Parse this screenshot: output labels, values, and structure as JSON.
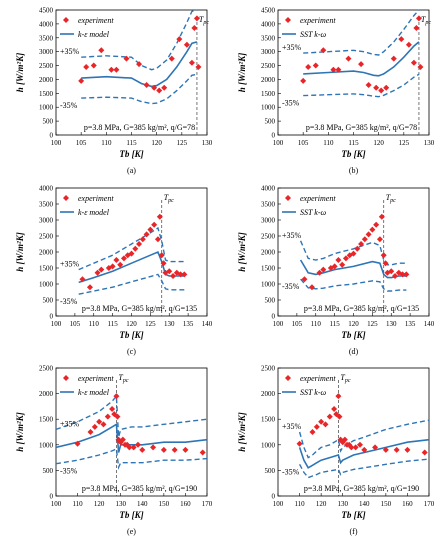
{
  "chart_data": [
    {
      "type": "scatter",
      "panel": "(a)",
      "ylabel": "h [W/m²K]",
      "xlabel": "Tb [K]",
      "xlim": [
        100,
        130
      ],
      "ylim": [
        0,
        4500
      ],
      "xticks": [
        100,
        105,
        110,
        115,
        120,
        125,
        130
      ],
      "yticks": [
        0,
        500,
        1000,
        1500,
        2000,
        2500,
        3000,
        3500,
        4000,
        4500
      ],
      "tpc": 128,
      "legend": {
        "experiment": "experiment",
        "model": "k-ε model"
      },
      "plus_label": "+35%",
      "minus_label": "-35%",
      "condition": "p=3.8 MPa, G=385 kg/m², q/G=78",
      "experiment": {
        "x": [
          105,
          106,
          107.5,
          109,
          111,
          112,
          114,
          116.5,
          118,
          119.5,
          120.5,
          121.5,
          123,
          124.5,
          126,
          127,
          127.5,
          128,
          128.3
        ],
        "y": [
          1950,
          2450,
          2500,
          3050,
          2350,
          2350,
          2750,
          2550,
          1800,
          1700,
          1600,
          1700,
          2750,
          3450,
          3250,
          2600,
          3850,
          4200,
          2450
        ]
      },
      "model": {
        "x": [
          105,
          110,
          115,
          117,
          119,
          120,
          122,
          124,
          126,
          127,
          128
        ],
        "y": [
          2050,
          2100,
          2050,
          1850,
          1750,
          1780,
          2000,
          2450,
          3000,
          3300,
          3350
        ]
      },
      "plus": {
        "x": [
          105,
          110,
          115,
          117,
          119,
          120,
          122,
          124,
          126,
          127,
          128
        ],
        "y": [
          2800,
          2850,
          2800,
          2500,
          2350,
          2400,
          2700,
          3300,
          4050,
          4450,
          4500
        ]
      },
      "minus": {
        "x": [
          105,
          110,
          115,
          117,
          119,
          120,
          122,
          124,
          126,
          127,
          128
        ],
        "y": [
          1330,
          1360,
          1330,
          1200,
          1130,
          1150,
          1300,
          1600,
          1950,
          2150,
          2180
        ]
      }
    },
    {
      "type": "scatter",
      "panel": "(b)",
      "ylabel": "h [W/m²K]",
      "xlabel": "Tb [K]",
      "xlim": [
        100,
        130
      ],
      "ylim": [
        0,
        4500
      ],
      "xticks": [
        100,
        105,
        110,
        115,
        120,
        125,
        130
      ],
      "yticks": [
        0,
        500,
        1000,
        1500,
        2000,
        2500,
        3000,
        3500,
        4000,
        4500
      ],
      "tpc": 128,
      "legend": {
        "experiment": "experiment",
        "model": "SST k-ω"
      },
      "plus_label": "+35%",
      "minus_label": "-35%",
      "condition": "p=3.8 MPa, G=385 kg/m², q/G=78",
      "experiment": {
        "x": [
          105,
          106,
          107.5,
          109,
          111,
          112,
          114,
          116.5,
          118,
          119.5,
          120.5,
          121.5,
          123,
          124.5,
          126,
          127,
          127.5,
          128,
          128.3
        ],
        "y": [
          1950,
          2450,
          2500,
          3050,
          2350,
          2350,
          2750,
          2550,
          1800,
          1700,
          1600,
          1700,
          2750,
          3450,
          3250,
          2600,
          3850,
          4200,
          2450
        ]
      },
      "model": {
        "x": [
          105,
          110,
          115,
          117,
          119,
          120,
          121,
          123,
          125,
          127,
          128
        ],
        "y": [
          2200,
          2250,
          2300,
          2250,
          2150,
          2130,
          2200,
          2450,
          2800,
          3200,
          3350
        ]
      },
      "plus": {
        "x": [
          105,
          110,
          115,
          117,
          119,
          120,
          121,
          123,
          125,
          127,
          128
        ],
        "y": [
          2950,
          3000,
          3050,
          3000,
          2900,
          2880,
          3000,
          3350,
          3800,
          4300,
          4500
        ]
      },
      "minus": {
        "x": [
          105,
          110,
          115,
          117,
          119,
          120,
          121,
          123,
          125,
          127,
          128
        ],
        "y": [
          1420,
          1450,
          1480,
          1450,
          1400,
          1380,
          1430,
          1600,
          1800,
          2080,
          2180
        ]
      }
    },
    {
      "type": "scatter",
      "panel": "(c)",
      "ylabel": "h [W/m²K]",
      "xlabel": "Tb [K]",
      "xlim": [
        100,
        140
      ],
      "ylim": [
        0,
        4000
      ],
      "xticks": [
        100,
        105,
        110,
        115,
        120,
        125,
        130,
        135,
        140
      ],
      "yticks": [
        0,
        500,
        1000,
        1500,
        2000,
        2500,
        3000,
        3500,
        4000
      ],
      "tpc": 128,
      "legend": {
        "experiment": "experiment",
        "model": "k-ε model"
      },
      "plus_label": "+35%",
      "minus_label": "-35%",
      "condition": "p=3.8 MPa, G=385 kg/m², q/G=135",
      "experiment": {
        "x": [
          107,
          109,
          111,
          112,
          114,
          115,
          116,
          117,
          118,
          119,
          120,
          121,
          122,
          123,
          124,
          125,
          126,
          127,
          127.5,
          128,
          128.5,
          129,
          130,
          131,
          132,
          133,
          134
        ],
        "y": [
          1150,
          900,
          1350,
          1450,
          1500,
          1550,
          1750,
          1600,
          1800,
          1900,
          1950,
          2100,
          2250,
          2400,
          2550,
          2700,
          2850,
          2400,
          3100,
          1900,
          1650,
          1350,
          1400,
          1250,
          1350,
          1300,
          1300
        ]
      },
      "model": {
        "x": [
          106,
          110,
          115,
          120,
          125,
          127,
          128,
          129,
          130,
          132,
          134
        ],
        "y": [
          1050,
          1200,
          1400,
          1650,
          1900,
          2000,
          1700,
          1300,
          1250,
          1250,
          1250
        ]
      },
      "plus": {
        "x": [
          106,
          110,
          115,
          120,
          125,
          127,
          128,
          129,
          130,
          132,
          134
        ],
        "y": [
          1450,
          1650,
          1900,
          2250,
          2600,
          2750,
          2350,
          1750,
          1700,
          1700,
          1700
        ]
      },
      "minus": {
        "x": [
          106,
          110,
          115,
          120,
          125,
          127,
          128,
          129,
          130,
          132,
          134
        ],
        "y": [
          680,
          780,
          900,
          1070,
          1230,
          1300,
          1100,
          850,
          820,
          820,
          820
        ]
      }
    },
    {
      "type": "scatter",
      "panel": "(d)",
      "ylabel": "h [W/m²K]",
      "xlabel": "Tb [K]",
      "xlim": [
        100,
        140
      ],
      "ylim": [
        0,
        4000
      ],
      "xticks": [
        100,
        105,
        110,
        115,
        120,
        125,
        130,
        135,
        140
      ],
      "yticks": [
        0,
        500,
        1000,
        1500,
        2000,
        2500,
        3000,
        3500,
        4000
      ],
      "tpc": 128,
      "legend": {
        "experiment": "experiment",
        "model": "SST k-ω"
      },
      "plus_label": "+35%",
      "minus_label": "-35%",
      "condition": "p=3.8 MPa, G=385 kg/m², q/G=135",
      "experiment": {
        "x": [
          107,
          109,
          111,
          112,
          114,
          115,
          116,
          117,
          118,
          119,
          120,
          121,
          122,
          123,
          124,
          125,
          126,
          127,
          127.5,
          128,
          128.5,
          129,
          130,
          131,
          132,
          133,
          134
        ],
        "y": [
          1150,
          900,
          1350,
          1450,
          1500,
          1550,
          1750,
          1600,
          1800,
          1900,
          1950,
          2100,
          2250,
          2400,
          2550,
          2700,
          2850,
          2400,
          3100,
          1900,
          1650,
          1350,
          1400,
          1250,
          1350,
          1300,
          1300
        ]
      },
      "model": {
        "x": [
          106,
          108,
          110,
          112,
          115,
          120,
          125,
          127,
          128,
          129,
          130,
          132,
          134
        ],
        "y": [
          1750,
          1350,
          1300,
          1350,
          1450,
          1550,
          1700,
          1650,
          1300,
          1200,
          1200,
          1250,
          1250
        ]
      },
      "plus": {
        "x": [
          106,
          108,
          110,
          112,
          115,
          120,
          125,
          127,
          128,
          129,
          130,
          132,
          134
        ],
        "y": [
          2350,
          1800,
          1750,
          1800,
          1950,
          2100,
          2300,
          2200,
          1750,
          1600,
          1600,
          1650,
          1650
        ]
      },
      "minus": {
        "x": [
          106,
          108,
          110,
          112,
          115,
          120,
          125,
          127,
          128,
          129,
          130,
          132,
          134
        ],
        "y": [
          1150,
          880,
          850,
          870,
          940,
          1000,
          1100,
          1070,
          850,
          780,
          780,
          810,
          810
        ]
      }
    },
    {
      "type": "scatter",
      "panel": "(e)",
      "ylabel": "h [W/m²K]",
      "xlabel": "Tb [K]",
      "xlim": [
        100,
        170
      ],
      "ylim": [
        0,
        2500
      ],
      "xticks": [
        100,
        110,
        120,
        130,
        140,
        150,
        160,
        170
      ],
      "yticks": [
        0,
        500,
        1000,
        1500,
        2000,
        2500
      ],
      "tpc": 128,
      "legend": {
        "experiment": "experiment",
        "model": "k-ε model"
      },
      "plus_label": "+35%",
      "minus_label": "-35%",
      "condition": "p=3.8 MPa, G=385 kg/m², q/G=190",
      "experiment": {
        "x": [
          110,
          116,
          118,
          120,
          122,
          124,
          126,
          127,
          128,
          128.5,
          129,
          130,
          131,
          132,
          133,
          134,
          136,
          138,
          140,
          145,
          150,
          155,
          160,
          168
        ],
        "y": [
          1020,
          1250,
          1350,
          1450,
          1400,
          1550,
          1700,
          1600,
          1950,
          1550,
          1100,
          1050,
          1100,
          1000,
          1000,
          950,
          950,
          1000,
          900,
          950,
          900,
          900,
          900,
          850
        ]
      },
      "model": {
        "x": [
          100,
          110,
          120,
          126,
          128,
          129,
          130,
          135,
          140,
          150,
          160,
          170
        ],
        "y": [
          950,
          1050,
          1200,
          1350,
          1400,
          850,
          1000,
          1000,
          1000,
          1050,
          1050,
          1100
        ]
      },
      "plus": {
        "x": [
          100,
          110,
          120,
          126,
          128,
          129,
          130,
          135,
          140,
          150,
          160,
          170
        ],
        "y": [
          1300,
          1450,
          1650,
          1850,
          1950,
          1150,
          1300,
          1350,
          1350,
          1400,
          1450,
          1500
        ]
      },
      "minus": {
        "x": [
          100,
          110,
          120,
          126,
          128,
          129,
          130,
          135,
          140,
          150,
          160,
          170
        ],
        "y": [
          630,
          700,
          800,
          880,
          920,
          560,
          650,
          650,
          650,
          700,
          700,
          730
        ]
      }
    },
    {
      "type": "scatter",
      "panel": "(f)",
      "ylabel": "h [W/m²K]",
      "xlabel": "Tb [K]",
      "xlim": [
        100,
        170
      ],
      "ylim": [
        0,
        2500
      ],
      "xticks": [
        100,
        110,
        120,
        130,
        140,
        150,
        160,
        170
      ],
      "yticks": [
        0,
        500,
        1000,
        1500,
        2000,
        2500
      ],
      "tpc": 128,
      "legend": {
        "experiment": "experiment",
        "model": "SST k-ω"
      },
      "plus_label": "+35%",
      "minus_label": "-35%",
      "condition": "p=3.8 MPa, G=385 kg/m², q/G=190",
      "experiment": {
        "x": [
          110,
          116,
          118,
          120,
          122,
          124,
          126,
          127,
          128,
          128.5,
          129,
          130,
          131,
          132,
          133,
          134,
          136,
          138,
          140,
          145,
          150,
          155,
          160,
          168
        ],
        "y": [
          1020,
          1250,
          1350,
          1450,
          1400,
          1550,
          1700,
          1600,
          1950,
          1550,
          1100,
          1050,
          1100,
          1000,
          1000,
          950,
          950,
          1000,
          900,
          950,
          900,
          900,
          900,
          850
        ]
      },
      "model": {
        "x": [
          110,
          112,
          114,
          116,
          118,
          120,
          124,
          128,
          129,
          130,
          135,
          140,
          150,
          160,
          170
        ],
        "y": [
          950,
          700,
          550,
          600,
          650,
          700,
          750,
          800,
          650,
          700,
          800,
          850,
          950,
          1050,
          1100
        ]
      },
      "plus": {
        "x": [
          110,
          112,
          114,
          116,
          118,
          120,
          124,
          128,
          129,
          130,
          135,
          140,
          150,
          160,
          170
        ],
        "y": [
          1250,
          950,
          750,
          800,
          880,
          950,
          1000,
          1100,
          880,
          950,
          1080,
          1150,
          1300,
          1400,
          1480
        ]
      },
      "minus": {
        "x": [
          110,
          112,
          114,
          116,
          118,
          120,
          124,
          128,
          129,
          130,
          135,
          140,
          150,
          160,
          170
        ],
        "y": [
          620,
          460,
          360,
          390,
          420,
          460,
          490,
          520,
          420,
          460,
          520,
          550,
          620,
          680,
          720
        ]
      }
    }
  ]
}
